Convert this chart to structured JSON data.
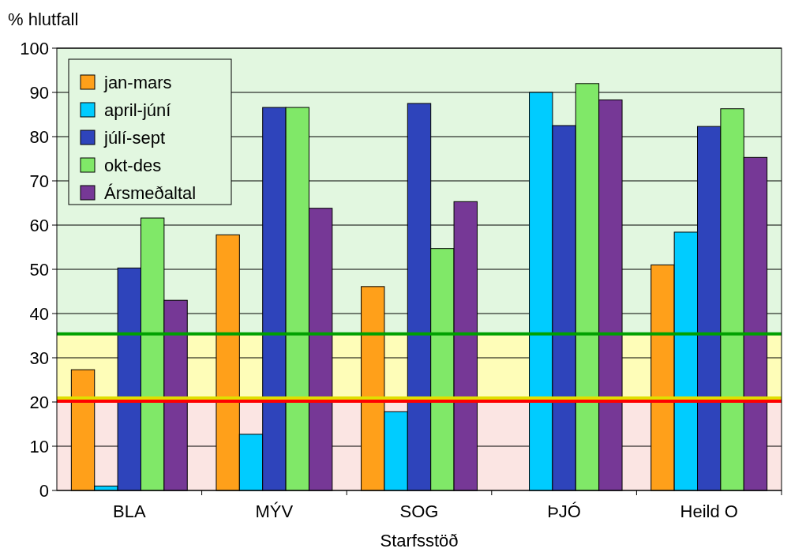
{
  "chart_data": {
    "type": "bar",
    "ylabel": "% hlutfall",
    "xlabel": "Starfsstöð",
    "categories": [
      "BLA",
      "MÝV",
      "SOG",
      "ÞJÓ",
      "Heild O"
    ],
    "series": [
      {
        "name": "jan-mars",
        "color": "#ffa01a",
        "values": [
          27.3,
          57.8,
          46.1,
          null,
          51
        ]
      },
      {
        "name": "april-júní",
        "color": "#00ccff",
        "values": [
          1,
          12.7,
          17.8,
          90,
          58.4
        ]
      },
      {
        "name": "júlí-sept",
        "color": "#2e44bb",
        "values": [
          50.3,
          86.6,
          87.5,
          82.5,
          82.3
        ]
      },
      {
        "name": "okt-des",
        "color": "#80e868",
        "values": [
          61.6,
          86.6,
          54.7,
          92,
          86.3
        ]
      },
      {
        "name": "Ársmeðaltal",
        "color": "#763896",
        "values": [
          43,
          63.8,
          65.3,
          88.3,
          75.3
        ]
      }
    ],
    "ylim": [
      0,
      100
    ],
    "yticks": [
      0,
      10,
      20,
      30,
      40,
      50,
      60,
      70,
      80,
      90,
      100
    ],
    "grid": "y",
    "legend": "top left",
    "bands": [
      {
        "axis": "y",
        "from": 0,
        "to": 20,
        "color": "#fbe5e3"
      },
      {
        "axis": "y",
        "from": 20,
        "to": 35.4,
        "color": "#fefdb8"
      },
      {
        "axis": "y",
        "from": 35.4,
        "to": 100,
        "color": "#e2f7e0"
      }
    ],
    "ref_lines": [
      {
        "axis": "y",
        "value": 35.4,
        "color": "#00a000"
      },
      {
        "axis": "y",
        "value": 20.9,
        "color": "#e0e000"
      },
      {
        "axis": "y",
        "value": 20.2,
        "color": "#ff0000"
      }
    ]
  }
}
